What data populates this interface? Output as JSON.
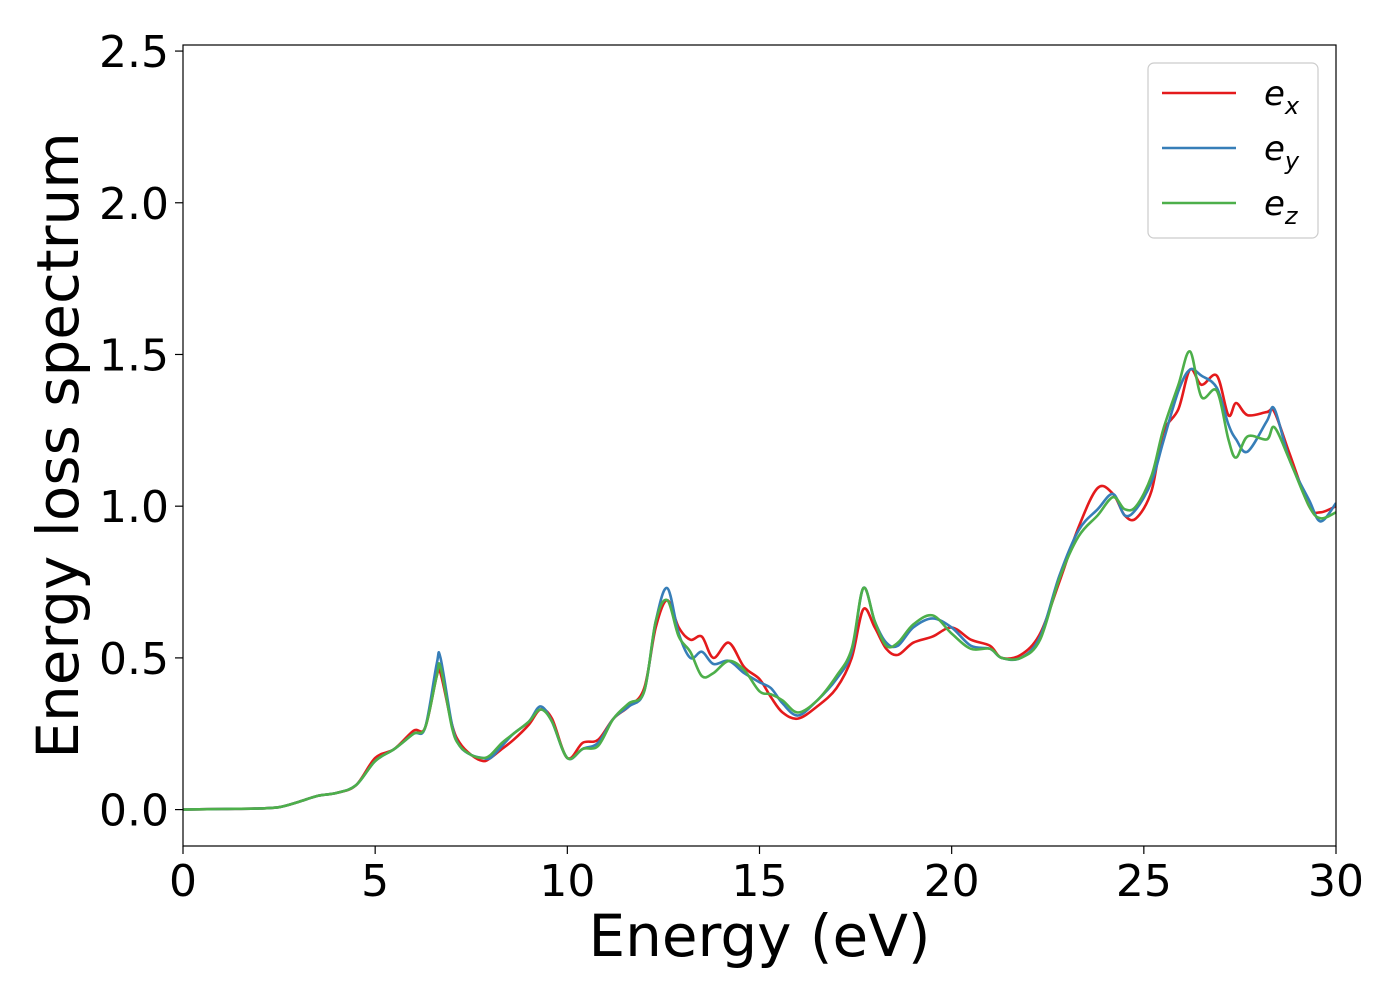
{
  "chart_data": {
    "type": "line",
    "title": "",
    "xlabel": "Energy (eV)",
    "ylabel": "Energy loss spectrum",
    "xlim": [
      0,
      30
    ],
    "ylim": [
      -0.12,
      2.52
    ],
    "xticks": [
      0,
      5,
      10,
      15,
      20,
      25,
      30
    ],
    "xtick_labels": [
      "0",
      "5",
      "10",
      "15",
      "20",
      "25",
      "30"
    ],
    "yticks": [
      0.0,
      0.5,
      1.0,
      1.5,
      2.0,
      2.5
    ],
    "ytick_labels": [
      "0.0",
      "0.5",
      "1.0",
      "1.5",
      "2.0",
      "2.5"
    ],
    "grid": false,
    "legend_position": "top-right",
    "series": [
      {
        "name": "e_x",
        "legend_main": "e",
        "legend_sub": "x",
        "color": "#e41a1c",
        "points": [
          [
            0,
            0
          ],
          [
            1,
            0.002
          ],
          [
            2,
            0.004
          ],
          [
            2.5,
            0.008
          ],
          [
            3,
            0.025
          ],
          [
            3.5,
            0.045
          ],
          [
            4,
            0.055
          ],
          [
            4.5,
            0.08
          ],
          [
            5,
            0.17
          ],
          [
            5.5,
            0.2
          ],
          [
            6,
            0.26
          ],
          [
            6.3,
            0.27
          ],
          [
            6.6,
            0.44
          ],
          [
            6.7,
            0.45
          ],
          [
            7,
            0.28
          ],
          [
            7.2,
            0.22
          ],
          [
            7.5,
            0.18
          ],
          [
            7.8,
            0.16
          ],
          [
            8,
            0.17
          ],
          [
            8.3,
            0.2
          ],
          [
            8.6,
            0.23
          ],
          [
            9,
            0.28
          ],
          [
            9.3,
            0.33
          ],
          [
            9.6,
            0.3
          ],
          [
            10,
            0.17
          ],
          [
            10.4,
            0.22
          ],
          [
            10.8,
            0.23
          ],
          [
            11.2,
            0.3
          ],
          [
            11.6,
            0.34
          ],
          [
            12,
            0.4
          ],
          [
            12.3,
            0.6
          ],
          [
            12.6,
            0.69
          ],
          [
            12.9,
            0.6
          ],
          [
            13.2,
            0.56
          ],
          [
            13.5,
            0.57
          ],
          [
            13.8,
            0.5
          ],
          [
            14.2,
            0.55
          ],
          [
            14.6,
            0.47
          ],
          [
            15,
            0.43
          ],
          [
            15.3,
            0.37
          ],
          [
            15.6,
            0.32
          ],
          [
            16,
            0.3
          ],
          [
            16.5,
            0.34
          ],
          [
            17,
            0.4
          ],
          [
            17.4,
            0.5
          ],
          [
            17.7,
            0.66
          ],
          [
            18,
            0.6
          ],
          [
            18.3,
            0.53
          ],
          [
            18.6,
            0.51
          ],
          [
            19,
            0.55
          ],
          [
            19.5,
            0.57
          ],
          [
            20,
            0.6
          ],
          [
            20.5,
            0.56
          ],
          [
            21,
            0.54
          ],
          [
            21.3,
            0.5
          ],
          [
            21.8,
            0.51
          ],
          [
            22.3,
            0.58
          ],
          [
            22.8,
            0.75
          ],
          [
            23.3,
            0.93
          ],
          [
            23.8,
            1.06
          ],
          [
            24.2,
            1.04
          ],
          [
            24.5,
            0.97
          ],
          [
            24.8,
            0.96
          ],
          [
            25.2,
            1.05
          ],
          [
            25.5,
            1.24
          ],
          [
            25.9,
            1.32
          ],
          [
            26.2,
            1.45
          ],
          [
            26.5,
            1.4
          ],
          [
            26.9,
            1.43
          ],
          [
            27.2,
            1.3
          ],
          [
            27.4,
            1.34
          ],
          [
            27.7,
            1.3
          ],
          [
            28.2,
            1.31
          ],
          [
            28.4,
            1.31
          ],
          [
            28.8,
            1.17
          ],
          [
            29.3,
            1.0
          ],
          [
            29.6,
            0.98
          ],
          [
            30,
            1.0
          ]
        ]
      },
      {
        "name": "e_y",
        "legend_main": "e",
        "legend_sub": "y",
        "color": "#377eb8",
        "points": [
          [
            0,
            0
          ],
          [
            1,
            0.002
          ],
          [
            2,
            0.004
          ],
          [
            2.5,
            0.008
          ],
          [
            3,
            0.025
          ],
          [
            3.5,
            0.045
          ],
          [
            4,
            0.055
          ],
          [
            4.5,
            0.08
          ],
          [
            5,
            0.16
          ],
          [
            5.5,
            0.2
          ],
          [
            6,
            0.25
          ],
          [
            6.3,
            0.27
          ],
          [
            6.6,
            0.48
          ],
          [
            6.7,
            0.5
          ],
          [
            7,
            0.28
          ],
          [
            7.2,
            0.21
          ],
          [
            7.5,
            0.18
          ],
          [
            7.8,
            0.17
          ],
          [
            8,
            0.17
          ],
          [
            8.3,
            0.21
          ],
          [
            8.6,
            0.25
          ],
          [
            9,
            0.29
          ],
          [
            9.3,
            0.34
          ],
          [
            9.6,
            0.29
          ],
          [
            10,
            0.17
          ],
          [
            10.4,
            0.2
          ],
          [
            10.8,
            0.22
          ],
          [
            11.2,
            0.3
          ],
          [
            11.6,
            0.34
          ],
          [
            12,
            0.39
          ],
          [
            12.3,
            0.62
          ],
          [
            12.6,
            0.73
          ],
          [
            12.9,
            0.58
          ],
          [
            13.2,
            0.5
          ],
          [
            13.5,
            0.52
          ],
          [
            13.8,
            0.48
          ],
          [
            14.2,
            0.49
          ],
          [
            14.6,
            0.45
          ],
          [
            15,
            0.42
          ],
          [
            15.3,
            0.4
          ],
          [
            15.6,
            0.35
          ],
          [
            16,
            0.31
          ],
          [
            16.5,
            0.36
          ],
          [
            17,
            0.43
          ],
          [
            17.4,
            0.52
          ],
          [
            17.7,
            0.73
          ],
          [
            18,
            0.62
          ],
          [
            18.3,
            0.55
          ],
          [
            18.6,
            0.54
          ],
          [
            19,
            0.6
          ],
          [
            19.5,
            0.63
          ],
          [
            20,
            0.6
          ],
          [
            20.5,
            0.54
          ],
          [
            21,
            0.53
          ],
          [
            21.3,
            0.5
          ],
          [
            21.8,
            0.5
          ],
          [
            22.3,
            0.57
          ],
          [
            22.8,
            0.77
          ],
          [
            23.3,
            0.92
          ],
          [
            23.8,
            0.99
          ],
          [
            24.2,
            1.04
          ],
          [
            24.5,
            0.97
          ],
          [
            24.8,
            0.99
          ],
          [
            25.2,
            1.08
          ],
          [
            25.5,
            1.21
          ],
          [
            25.9,
            1.38
          ],
          [
            26.2,
            1.45
          ],
          [
            26.5,
            1.43
          ],
          [
            26.9,
            1.39
          ],
          [
            27.2,
            1.27
          ],
          [
            27.4,
            1.22
          ],
          [
            27.7,
            1.18
          ],
          [
            28.2,
            1.28
          ],
          [
            28.4,
            1.32
          ],
          [
            28.8,
            1.15
          ],
          [
            29.3,
            1.02
          ],
          [
            29.6,
            0.95
          ],
          [
            30,
            1.01
          ]
        ]
      },
      {
        "name": "e_z",
        "legend_main": "e",
        "legend_sub": "z",
        "color": "#4daf4a",
        "points": [
          [
            0,
            0
          ],
          [
            1,
            0.002
          ],
          [
            2,
            0.004
          ],
          [
            2.5,
            0.008
          ],
          [
            3,
            0.025
          ],
          [
            3.5,
            0.045
          ],
          [
            4,
            0.055
          ],
          [
            4.5,
            0.08
          ],
          [
            5,
            0.16
          ],
          [
            5.5,
            0.2
          ],
          [
            6,
            0.25
          ],
          [
            6.3,
            0.27
          ],
          [
            6.6,
            0.44
          ],
          [
            6.7,
            0.47
          ],
          [
            7,
            0.27
          ],
          [
            7.2,
            0.21
          ],
          [
            7.5,
            0.18
          ],
          [
            7.8,
            0.17
          ],
          [
            8,
            0.18
          ],
          [
            8.3,
            0.22
          ],
          [
            8.6,
            0.25
          ],
          [
            9,
            0.29
          ],
          [
            9.3,
            0.33
          ],
          [
            9.6,
            0.29
          ],
          [
            10,
            0.17
          ],
          [
            10.4,
            0.2
          ],
          [
            10.8,
            0.21
          ],
          [
            11.2,
            0.3
          ],
          [
            11.6,
            0.35
          ],
          [
            12,
            0.39
          ],
          [
            12.3,
            0.62
          ],
          [
            12.6,
            0.69
          ],
          [
            12.9,
            0.57
          ],
          [
            13.2,
            0.52
          ],
          [
            13.5,
            0.44
          ],
          [
            13.8,
            0.45
          ],
          [
            14.2,
            0.49
          ],
          [
            14.6,
            0.46
          ],
          [
            15,
            0.39
          ],
          [
            15.3,
            0.38
          ],
          [
            15.6,
            0.36
          ],
          [
            16,
            0.32
          ],
          [
            16.5,
            0.36
          ],
          [
            17,
            0.44
          ],
          [
            17.4,
            0.53
          ],
          [
            17.7,
            0.73
          ],
          [
            18,
            0.62
          ],
          [
            18.3,
            0.54
          ],
          [
            18.6,
            0.55
          ],
          [
            19,
            0.61
          ],
          [
            19.5,
            0.64
          ],
          [
            20,
            0.58
          ],
          [
            20.5,
            0.53
          ],
          [
            21,
            0.53
          ],
          [
            21.3,
            0.5
          ],
          [
            21.8,
            0.5
          ],
          [
            22.3,
            0.56
          ],
          [
            22.8,
            0.76
          ],
          [
            23.3,
            0.9
          ],
          [
            23.8,
            0.97
          ],
          [
            24.2,
            1.03
          ],
          [
            24.5,
            0.99
          ],
          [
            24.8,
            1.0
          ],
          [
            25.2,
            1.1
          ],
          [
            25.5,
            1.25
          ],
          [
            25.9,
            1.4
          ],
          [
            26.2,
            1.51
          ],
          [
            26.5,
            1.36
          ],
          [
            26.9,
            1.38
          ],
          [
            27.2,
            1.22
          ],
          [
            27.4,
            1.16
          ],
          [
            27.7,
            1.23
          ],
          [
            28.2,
            1.22
          ],
          [
            28.4,
            1.26
          ],
          [
            28.8,
            1.15
          ],
          [
            29.3,
            1.0
          ],
          [
            29.6,
            0.96
          ],
          [
            30,
            0.98
          ]
        ]
      }
    ]
  }
}
